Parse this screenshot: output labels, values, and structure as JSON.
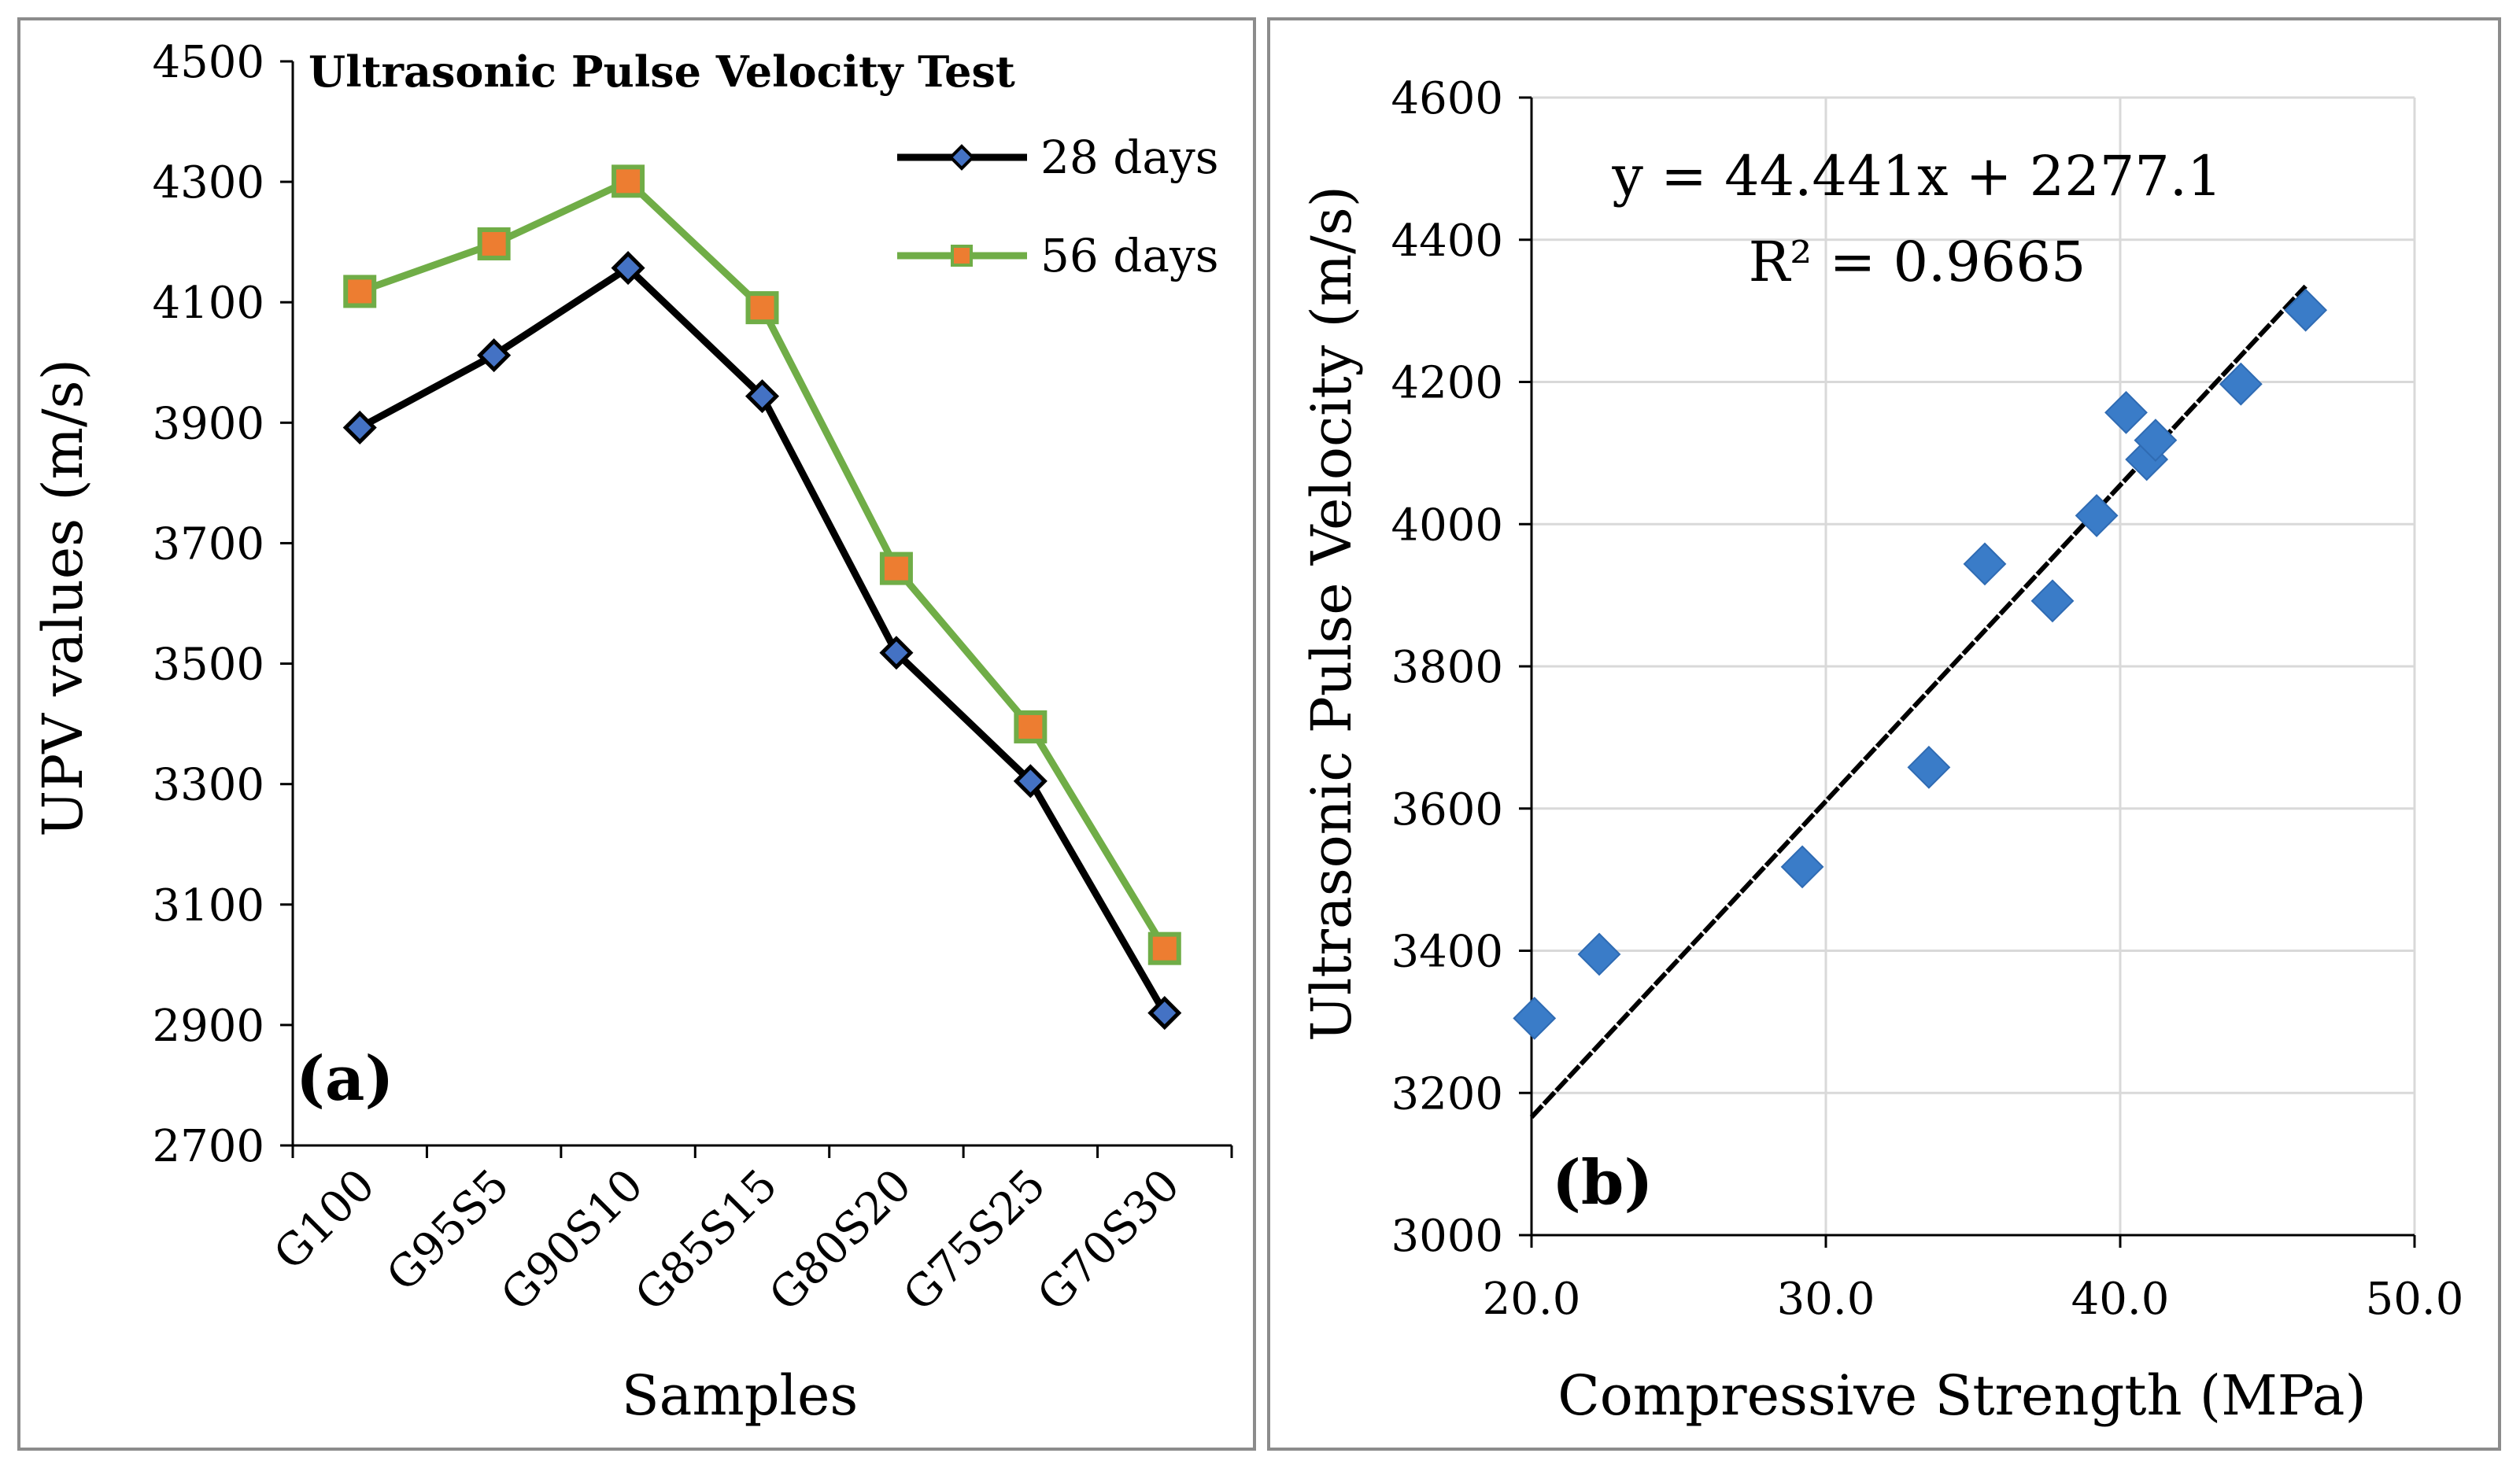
{
  "chart_data": [
    {
      "panel": "(a)",
      "type": "line",
      "title": "Ultrasonic Pulse Velocity Test",
      "xlabel": "Samples",
      "ylabel": "UPV values (m/s)",
      "categories": [
        "G100",
        "G95S5",
        "G90S10",
        "G85S15",
        "G80S20",
        "G75S25",
        "G70S30"
      ],
      "ylim": [
        2700,
        4500
      ],
      "yticks": [
        2700,
        2900,
        3100,
        3300,
        3500,
        3700,
        3900,
        4100,
        4300,
        4500
      ],
      "series": [
        {
          "name": "28 days",
          "color": "#000000",
          "marker_color": "#4472c4",
          "marker": "diamond",
          "values": [
            3892,
            4012,
            4157,
            3944,
            3518,
            3305,
            2920
          ]
        },
        {
          "name": "56 days",
          "color": "#70ad47",
          "marker_color": "#ed7d31",
          "marker": "square",
          "values": [
            4118,
            4197,
            4301,
            4091,
            3658,
            3395,
            3027
          ]
        }
      ],
      "legend_position": "top-right",
      "grid": false
    },
    {
      "panel": "(b)",
      "type": "scatter",
      "xlabel": "Compressive Strength (MPa)",
      "ylabel": "Ultrasonic Pulse Velocity (m/s)",
      "xlim": [
        20,
        50
      ],
      "xticks": [
        "20.0",
        "30.0",
        "40.0",
        "50.0"
      ],
      "ylim": [
        3000,
        4600
      ],
      "yticks": [
        3000,
        3200,
        3400,
        3600,
        3800,
        4000,
        4200,
        4400,
        4600
      ],
      "marker_color": "#3a7cc8",
      "points": [
        {
          "x": 20.1,
          "y": 3305
        },
        {
          "x": 22.3,
          "y": 3395
        },
        {
          "x": 29.2,
          "y": 3518
        },
        {
          "x": 33.5,
          "y": 3658
        },
        {
          "x": 35.4,
          "y": 3944
        },
        {
          "x": 37.7,
          "y": 3892
        },
        {
          "x": 39.2,
          "y": 4012
        },
        {
          "x": 40.2,
          "y": 4157
        },
        {
          "x": 40.9,
          "y": 4091
        },
        {
          "x": 41.2,
          "y": 4118
        },
        {
          "x": 44.1,
          "y": 4197
        },
        {
          "x": 46.3,
          "y": 4301
        }
      ],
      "trendline": {
        "slope": 44.441,
        "intercept": 2277.1,
        "x_start": 20.0,
        "x_end": 46.3
      },
      "equation": "y = 44.441x + 2277.1",
      "r_squared": "R² = 0.9665",
      "grid": true
    }
  ]
}
